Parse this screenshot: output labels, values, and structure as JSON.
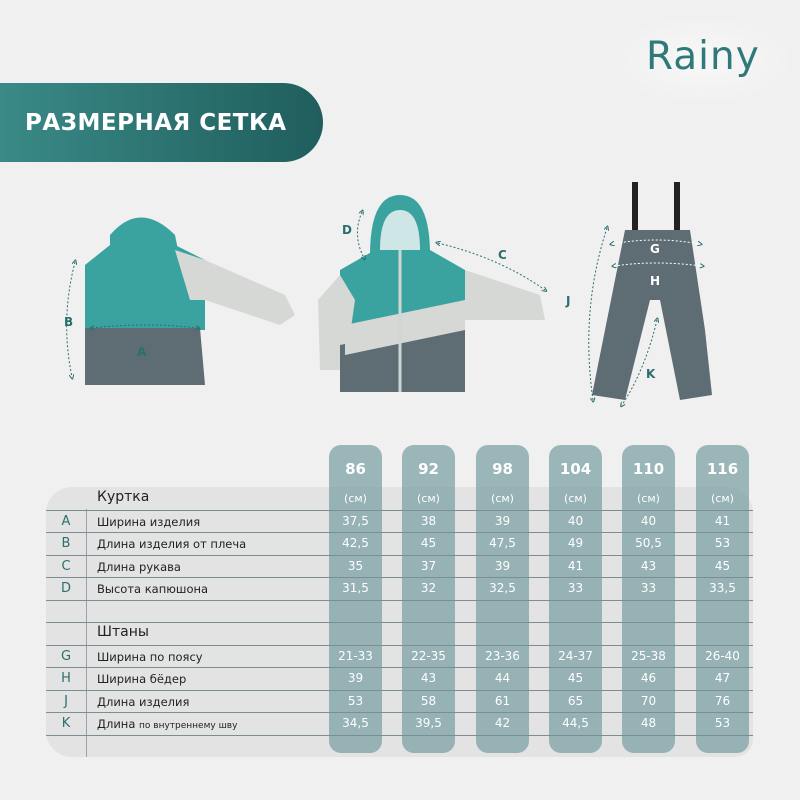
{
  "brand": "Rainy",
  "banner_title": "РАЗМЕРНАЯ СЕТКА",
  "colors": {
    "accent": "#2a6f6d",
    "column": "#8fb0b1",
    "jacket_teal": "#3aa39f",
    "garment_grey": "#5e6d73",
    "sleeve_light": "#d6d8d6"
  },
  "measure_labels": {
    "jacket_back": [
      "A",
      "B"
    ],
    "jacket_front": [
      "C",
      "D"
    ],
    "pants": [
      "G",
      "H",
      "J",
      "K"
    ]
  },
  "sizes": [
    "86",
    "92",
    "98",
    "104",
    "110",
    "116"
  ],
  "unit": "(см)",
  "sections": [
    {
      "title": "Куртка",
      "rows": [
        {
          "letter": "A",
          "label": "Ширина изделия",
          "values": [
            "37,5",
            "38",
            "39",
            "40",
            "40",
            "41"
          ]
        },
        {
          "letter": "B",
          "label": "Длина изделия от плеча",
          "values": [
            "42,5",
            "45",
            "47,5",
            "49",
            "50,5",
            "53"
          ]
        },
        {
          "letter": "C",
          "label": "Длина рукава",
          "values": [
            "35",
            "37",
            "39",
            "41",
            "43",
            "45"
          ]
        },
        {
          "letter": "D",
          "label": "Высота капюшона",
          "values": [
            "31,5",
            "32",
            "32,5",
            "33",
            "33",
            "33,5"
          ]
        }
      ]
    },
    {
      "title": "Штаны",
      "rows": [
        {
          "letter": "G",
          "label": "Ширина по поясу",
          "values": [
            "21-33",
            "22-35",
            "23-36",
            "24-37",
            "25-38",
            "26-40"
          ]
        },
        {
          "letter": "H",
          "label": "Ширина бёдер",
          "values": [
            "39",
            "43",
            "44",
            "45",
            "46",
            "47"
          ]
        },
        {
          "letter": "J",
          "label": "Длина изделия",
          "values": [
            "53",
            "58",
            "61",
            "65",
            "70",
            "76"
          ]
        },
        {
          "letter": "K",
          "label": "Длина",
          "label_small": "по внутреннему шву",
          "values": [
            "34,5",
            "39,5",
            "42",
            "44,5",
            "48",
            "53"
          ]
        }
      ]
    }
  ]
}
